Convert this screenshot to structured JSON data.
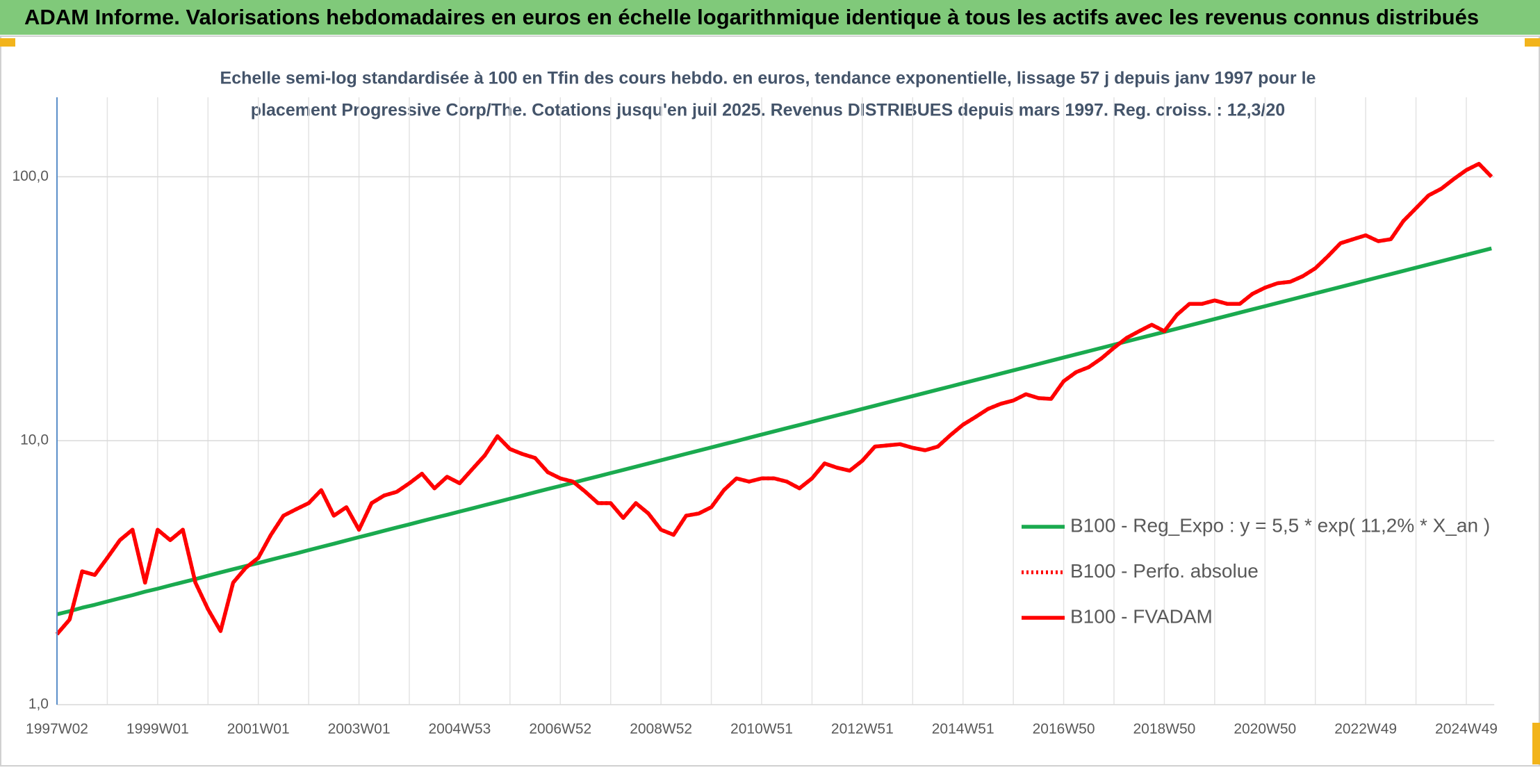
{
  "chart_data": {
    "type": "line",
    "title": "ADAM Informe. Valorisations hebdomadaires en euros en échelle logarithmique identique à tous les actifs avec les revenus connus distribués",
    "subtitle": [
      "Echelle semi-log standardisée à 100 en Tfin des cours hebdo. en euros, tendance exponentielle, lissage 57 j depuis janv 1997 pour le",
      "placement Progressive Corp/The. Cotations jusqu'en juil 2025. Revenus DISTRIBUES depuis mars 1997. Reg. croiss. : 12,3/20"
    ],
    "log_scale": true,
    "grid": true,
    "legend": "right",
    "ylim": [
      1,
      200
    ],
    "yticks": [
      {
        "value": 1,
        "label": "1,0"
      },
      {
        "value": 10,
        "label": "10,0"
      },
      {
        "value": 100,
        "label": "100,0"
      }
    ],
    "categories": [
      "1997W02",
      null,
      null,
      null,
      null,
      null,
      null,
      null,
      "1999W01",
      null,
      null,
      null,
      null,
      null,
      null,
      null,
      "2001W01",
      null,
      null,
      null,
      null,
      null,
      null,
      null,
      "2003W01",
      null,
      null,
      null,
      null,
      null,
      null,
      null,
      "2004W53",
      null,
      null,
      null,
      null,
      null,
      null,
      null,
      "2006W52",
      null,
      null,
      null,
      null,
      null,
      null,
      null,
      "2008W52",
      null,
      null,
      null,
      null,
      null,
      null,
      null,
      "2010W51",
      null,
      null,
      null,
      null,
      null,
      null,
      null,
      "2012W51",
      null,
      null,
      null,
      null,
      null,
      null,
      null,
      "2014W51",
      null,
      null,
      null,
      null,
      null,
      null,
      null,
      "2016W50",
      null,
      null,
      null,
      null,
      null,
      null,
      null,
      "2018W50",
      null,
      null,
      null,
      null,
      null,
      null,
      null,
      "2020W50",
      null,
      null,
      null,
      null,
      null,
      null,
      null,
      "2022W49",
      null,
      null,
      null,
      null,
      null,
      null,
      null,
      "2024W49",
      null,
      null
    ],
    "series": [
      {
        "name": "B100 - Reg_Expo : y = 5,5 * exp( 11,2% *  X_an )",
        "color": "#1aaa4f",
        "dash": "solid",
        "values": [
          2.2,
          2.26,
          2.33,
          2.39,
          2.46,
          2.53,
          2.6,
          2.68,
          2.75,
          2.83,
          2.91,
          2.99,
          3.08,
          3.17,
          3.26,
          3.35,
          3.44,
          3.54,
          3.64,
          3.74,
          3.85,
          3.96,
          4.07,
          4.19,
          4.31,
          4.43,
          4.56,
          4.69,
          4.82,
          4.96,
          5.1,
          5.24,
          5.39,
          5.54,
          5.7,
          5.86,
          6.03,
          6.2,
          6.38,
          6.56,
          6.74,
          6.93,
          7.13,
          7.33,
          7.54,
          7.75,
          7.97,
          8.2,
          8.43,
          8.67,
          8.92,
          9.17,
          9.43,
          9.7,
          9.97,
          10.26,
          10.55,
          10.85,
          11.16,
          11.47,
          11.8,
          12.14,
          12.48,
          12.83,
          13.2,
          13.57,
          13.96,
          14.36,
          14.76,
          15.18,
          15.61,
          16.05,
          16.51,
          16.98,
          17.46,
          17.96,
          18.47,
          18.99,
          19.53,
          20.09,
          20.66,
          21.25,
          21.85,
          22.47,
          23.11,
          23.77,
          24.44,
          25.13,
          25.84,
          26.57,
          27.33,
          28.11,
          28.91,
          29.73,
          30.57,
          31.44,
          32.33,
          33.25,
          34.19,
          35.16,
          36.16,
          37.19,
          38.24,
          39.33,
          40.45,
          41.6,
          42.78,
          43.99,
          45.24,
          46.52,
          47.84,
          49.2,
          50.61,
          52.05,
          53.52
        ]
      },
      {
        "name": "B100 - Perfo. absolue",
        "color": "#ff0000",
        "dash": "dotted",
        "values": [
          1.85,
          2.1,
          3.2,
          3.1,
          3.6,
          4.2,
          4.6,
          2.9,
          4.6,
          4.2,
          4.6,
          2.9,
          2.3,
          1.9,
          2.9,
          3.3,
          3.6,
          4.4,
          5.2,
          5.5,
          5.8,
          6.5,
          5.2,
          5.6,
          4.6,
          5.8,
          6.2,
          6.4,
          6.9,
          7.5,
          6.6,
          7.3,
          6.9,
          7.8,
          8.8,
          10.4,
          9.3,
          8.9,
          8.6,
          7.6,
          7.2,
          7.0,
          6.4,
          5.8,
          5.8,
          5.1,
          5.8,
          5.3,
          4.6,
          4.4,
          5.2,
          5.3,
          5.6,
          6.5,
          7.2,
          7.0,
          7.2,
          7.2,
          7.0,
          6.6,
          7.2,
          8.2,
          7.9,
          7.7,
          8.4,
          9.5,
          9.6,
          9.7,
          9.4,
          9.2,
          9.5,
          10.5,
          11.5,
          12.3,
          13.2,
          13.8,
          14.2,
          15.0,
          14.5,
          14.4,
          16.8,
          18.2,
          19.0,
          20.5,
          22.5,
          24.5,
          26,
          27.5,
          26,
          30,
          33,
          33,
          34,
          33,
          33,
          36,
          38,
          39.5,
          40,
          42,
          45,
          50,
          56,
          58,
          60,
          57,
          58,
          68,
          76,
          85,
          90,
          98,
          106,
          112,
          100
        ]
      },
      {
        "name": "B100 - FVADAM",
        "color": "#ff0000",
        "dash": "solid",
        "values": [
          1.85,
          2.1,
          3.2,
          3.1,
          3.6,
          4.2,
          4.6,
          2.9,
          4.6,
          4.2,
          4.6,
          2.9,
          2.3,
          1.9,
          2.9,
          3.3,
          3.6,
          4.4,
          5.2,
          5.5,
          5.8,
          6.5,
          5.2,
          5.6,
          4.6,
          5.8,
          6.2,
          6.4,
          6.9,
          7.5,
          6.6,
          7.3,
          6.9,
          7.8,
          8.8,
          10.4,
          9.3,
          8.9,
          8.6,
          7.6,
          7.2,
          7.0,
          6.4,
          5.8,
          5.8,
          5.1,
          5.8,
          5.3,
          4.6,
          4.4,
          5.2,
          5.3,
          5.6,
          6.5,
          7.2,
          7.0,
          7.2,
          7.2,
          7.0,
          6.6,
          7.2,
          8.2,
          7.9,
          7.7,
          8.4,
          9.5,
          9.6,
          9.7,
          9.4,
          9.2,
          9.5,
          10.5,
          11.5,
          12.3,
          13.2,
          13.8,
          14.2,
          15.0,
          14.5,
          14.4,
          16.8,
          18.2,
          19.0,
          20.5,
          22.5,
          24.5,
          26,
          27.5,
          26,
          30,
          33,
          33,
          34,
          33,
          33,
          36,
          38,
          39.5,
          40,
          42,
          45,
          50,
          56,
          58,
          60,
          57,
          58,
          68,
          76,
          85,
          90,
          98,
          106,
          112,
          100
        ]
      }
    ]
  }
}
